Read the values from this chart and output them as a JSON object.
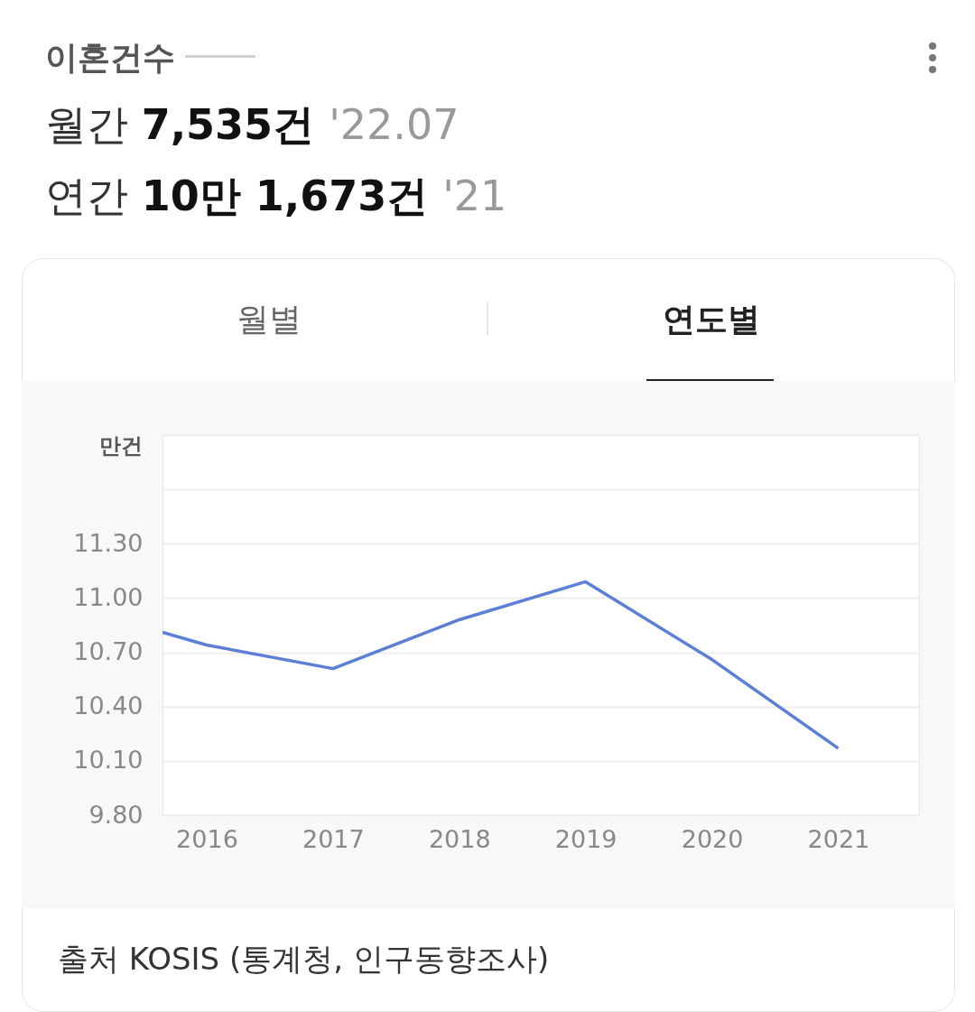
{
  "chart_data": {
    "type": "line",
    "title": "이혼건수",
    "ylabel": "만건",
    "annotations": [
      "월간 7,535건 '22.07",
      "연간 10만 1,673건 '21",
      "월별",
      "연도별",
      "출처 KOSIS (통계청, 인구동향조사)"
    ],
    "x": [
      2015.65,
      2016,
      2017,
      2018,
      2019,
      2020,
      2021
    ],
    "series": [
      {
        "color": "#5b7fd6",
        "values": [
          10.81,
          10.74,
          10.61,
          10.88,
          11.09,
          10.66,
          10.17
        ]
      }
    ],
    "xlim": [
      2015.65,
      2021.64
    ],
    "xticks": [
      2016,
      2017,
      2018,
      2019,
      2020,
      2021
    ],
    "ylim": [
      9.8,
      11.9
    ],
    "yticks": [
      {
        "value": 9.8,
        "label": "9.80"
      },
      {
        "value": 10.1,
        "label": "10.10"
      },
      {
        "value": 10.4,
        "label": "10.40"
      },
      {
        "value": 10.7,
        "label": "10.70"
      },
      {
        "value": 11.0,
        "label": "11.00"
      },
      {
        "value": 11.3,
        "label": "11.30"
      },
      {
        "value": 11.6,
        "label": null
      },
      {
        "value": 11.9,
        "label": null
      }
    ],
    "grid": "y",
    "marker": "none",
    "line_style": "solid"
  }
}
